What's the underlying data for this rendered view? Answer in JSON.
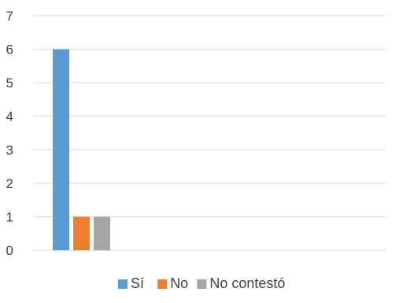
{
  "chart_data": {
    "type": "bar",
    "title": "",
    "xlabel": "",
    "ylabel": "",
    "categories": [
      ""
    ],
    "series": [
      {
        "name": "Sí",
        "values": [
          6
        ],
        "color": "#5b9bd5"
      },
      {
        "name": "No",
        "values": [
          1
        ],
        "color": "#ed7d31"
      },
      {
        "name": "No contestó",
        "values": [
          1
        ],
        "color": "#a5a5a5"
      }
    ],
    "ylim": [
      0,
      7
    ],
    "yticks": [
      "0",
      "1",
      "2",
      "3",
      "4",
      "5",
      "6",
      "7"
    ],
    "grid": true,
    "legend": "bottom"
  }
}
